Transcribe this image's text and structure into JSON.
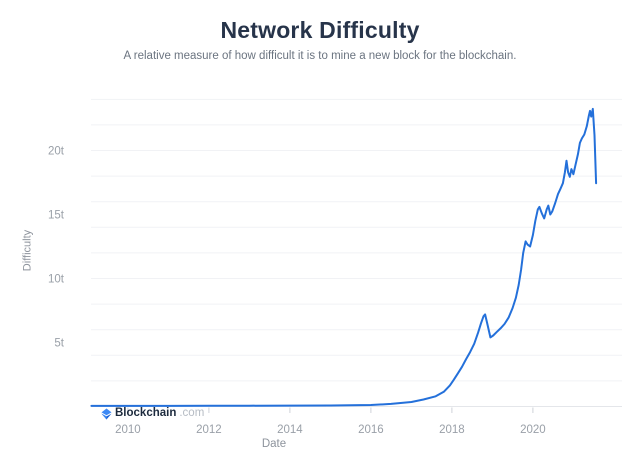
{
  "header": {
    "title": "Network Difficulty",
    "subtitle": "A relative measure of how difficult it is to mine a new block for the blockchain."
  },
  "watermark": {
    "brand": "Blockchain",
    "tld": ".com",
    "logo_icon": "blockchain-diamond-icon",
    "logo_color": "#3d89f5",
    "logo_color_dark": "#1b63d6"
  },
  "colors": {
    "line": "#2470da",
    "grid": "#f1f2f5",
    "axis": "#e4e6ea",
    "tick": "#ced2d8",
    "tick_label": "#9aa0a8",
    "axis_title": "#8d939c"
  },
  "chart_data": {
    "type": "line",
    "title": "Network Difficulty",
    "subtitle": "A relative measure of how difficult it is to mine a new block for the blockchain.",
    "xlabel": "Date",
    "ylabel": "Difficulty",
    "legend": "none",
    "grid": true,
    "xlim": [
      2009.09,
      2022.2
    ],
    "ylim": [
      0,
      24.34
    ],
    "x_tick_years": [
      2010,
      2012,
      2014,
      2016,
      2018,
      2020
    ],
    "x_tick_labels": [
      "2010",
      "2012",
      "2014",
      "2016",
      "2018",
      "2020"
    ],
    "y_tick_values": [
      5,
      10,
      15,
      20
    ],
    "y_tick_labels": [
      "5t",
      "10t",
      "15t",
      "20t"
    ],
    "grid_values": [
      2,
      4,
      6,
      8,
      10,
      12,
      14,
      16,
      18,
      20,
      22,
      24
    ],
    "unit": "trillions (t)",
    "series": [
      {
        "name": "Difficulty",
        "points": [
          [
            2009.1,
            0.05
          ],
          [
            2010.0,
            0.05
          ],
          [
            2011.0,
            0.05
          ],
          [
            2012.0,
            0.06
          ],
          [
            2013.0,
            0.06
          ],
          [
            2014.0,
            0.07
          ],
          [
            2015.0,
            0.08
          ],
          [
            2015.5,
            0.09
          ],
          [
            2016.0,
            0.12
          ],
          [
            2016.5,
            0.2
          ],
          [
            2017.0,
            0.35
          ],
          [
            2017.3,
            0.55
          ],
          [
            2017.6,
            0.8
          ],
          [
            2017.8,
            1.15
          ],
          [
            2017.95,
            1.65
          ],
          [
            2018.05,
            2.1
          ],
          [
            2018.15,
            2.6
          ],
          [
            2018.25,
            3.1
          ],
          [
            2018.35,
            3.7
          ],
          [
            2018.45,
            4.25
          ],
          [
            2018.55,
            4.9
          ],
          [
            2018.65,
            5.8
          ],
          [
            2018.72,
            6.5
          ],
          [
            2018.78,
            7.05
          ],
          [
            2018.82,
            7.2
          ],
          [
            2018.88,
            6.4
          ],
          [
            2018.95,
            5.4
          ],
          [
            2019.02,
            5.55
          ],
          [
            2019.1,
            5.8
          ],
          [
            2019.2,
            6.1
          ],
          [
            2019.3,
            6.45
          ],
          [
            2019.4,
            6.95
          ],
          [
            2019.5,
            7.7
          ],
          [
            2019.58,
            8.5
          ],
          [
            2019.65,
            9.5
          ],
          [
            2019.71,
            10.7
          ],
          [
            2019.76,
            12.0
          ],
          [
            2019.82,
            12.9
          ],
          [
            2019.87,
            12.65
          ],
          [
            2019.93,
            12.5
          ],
          [
            2020.0,
            13.4
          ],
          [
            2020.06,
            14.5
          ],
          [
            2020.12,
            15.4
          ],
          [
            2020.16,
            15.6
          ],
          [
            2020.22,
            15.1
          ],
          [
            2020.28,
            14.7
          ],
          [
            2020.34,
            15.4
          ],
          [
            2020.38,
            15.7
          ],
          [
            2020.43,
            15.0
          ],
          [
            2020.48,
            15.25
          ],
          [
            2020.55,
            15.9
          ],
          [
            2020.62,
            16.6
          ],
          [
            2020.68,
            17.0
          ],
          [
            2020.74,
            17.45
          ],
          [
            2020.79,
            18.3
          ],
          [
            2020.83,
            19.2
          ],
          [
            2020.87,
            18.3
          ],
          [
            2020.91,
            17.95
          ],
          [
            2020.95,
            18.55
          ],
          [
            2021.0,
            18.15
          ],
          [
            2021.05,
            18.85
          ],
          [
            2021.11,
            19.7
          ],
          [
            2021.16,
            20.6
          ],
          [
            2021.21,
            20.95
          ],
          [
            2021.27,
            21.25
          ],
          [
            2021.33,
            21.9
          ],
          [
            2021.38,
            22.7
          ],
          [
            2021.41,
            23.1
          ],
          [
            2021.44,
            22.65
          ],
          [
            2021.48,
            23.25
          ],
          [
            2021.52,
            21.2
          ],
          [
            2021.56,
            17.45
          ]
        ]
      }
    ]
  }
}
